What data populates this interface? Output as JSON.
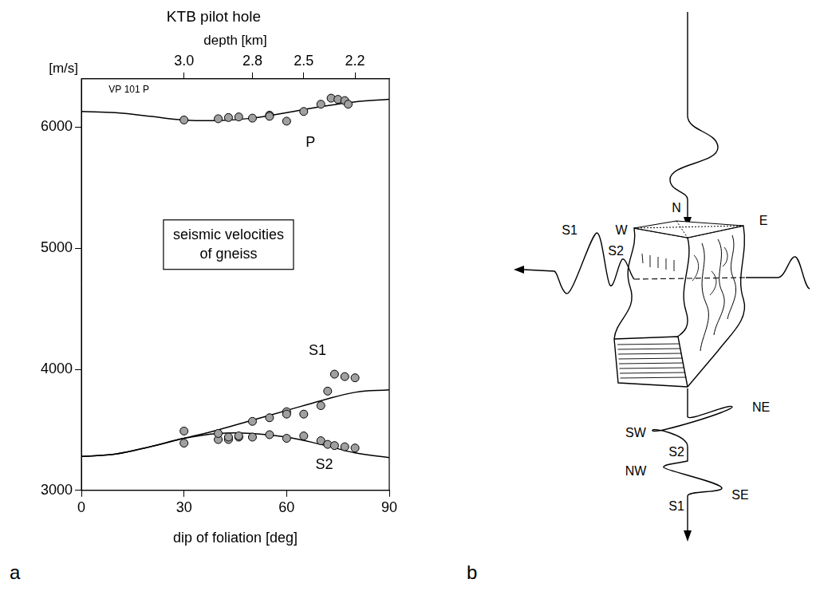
{
  "chart_data": {
    "type": "scatter",
    "panel": "a",
    "title": "KTB pilot hole",
    "xlabel": "dip of foliation [deg]",
    "ylabel": "[m/s]",
    "x2label": "depth [km]",
    "note": {
      "text": "VP 101 P",
      "x": 8,
      "y": 6310
    },
    "box": {
      "lines": [
        "seismic velocities",
        "of gneiss"
      ],
      "x": 43,
      "y": 5030
    },
    "xlim": [
      0,
      90
    ],
    "xticks": [
      0,
      30,
      60,
      90
    ],
    "x2ticks": [
      {
        "value": 30,
        "label": "3.0"
      },
      {
        "value": 50,
        "label": "2.8"
      },
      {
        "value": 65,
        "label": "2.5"
      },
      {
        "value": 80,
        "label": "2.2"
      }
    ],
    "ylim": [
      3000,
      6400
    ],
    "yticks": [
      3000,
      4000,
      5000,
      6000
    ],
    "grid": false,
    "series": [
      {
        "name": "P",
        "type": "line",
        "color": "#000000",
        "line_style": "solid",
        "label": {
          "x": 67,
          "y": 5870
        },
        "x": [
          0,
          10,
          20,
          30,
          40,
          50,
          60,
          70,
          80,
          90
        ],
        "values": [
          6130,
          6120,
          6090,
          6060,
          6055,
          6075,
          6120,
          6170,
          6210,
          6230
        ]
      },
      {
        "name": "S1",
        "type": "line",
        "color": "#000000",
        "line_style": "solid",
        "label": {
          "x": 69,
          "y": 4150
        },
        "x": [
          0,
          10,
          20,
          30,
          40,
          50,
          60,
          70,
          80,
          90
        ],
        "values": [
          3280,
          3300,
          3360,
          3430,
          3500,
          3580,
          3660,
          3740,
          3810,
          3830
        ]
      },
      {
        "name": "S2",
        "type": "line",
        "color": "#000000",
        "line_style": "solid",
        "label": {
          "x": 71,
          "y": 3210
        },
        "x": [
          0,
          10,
          20,
          30,
          40,
          50,
          60,
          70,
          80,
          90
        ],
        "values": [
          3280,
          3300,
          3360,
          3430,
          3470,
          3470,
          3440,
          3380,
          3310,
          3270
        ]
      },
      {
        "name": "P",
        "type": "scatter",
        "color": "#a0a0a0",
        "marker": "circle",
        "x": [
          30,
          40,
          43,
          46,
          50,
          55,
          55,
          60,
          65,
          70,
          73,
          75,
          77,
          78
        ],
        "values": [
          6060,
          6070,
          6080,
          6085,
          6075,
          6100,
          6090,
          6050,
          6130,
          6190,
          6240,
          6230,
          6220,
          6190
        ]
      },
      {
        "name": "S1",
        "type": "scatter",
        "color": "#a0a0a0",
        "marker": "circle",
        "x": [
          30,
          40,
          43,
          46,
          50,
          55,
          60,
          60,
          65,
          70,
          72,
          74,
          77,
          80
        ],
        "values": [
          3490,
          3470,
          3440,
          3450,
          3570,
          3600,
          3650,
          3630,
          3630,
          3700,
          3820,
          3960,
          3940,
          3930
        ]
      },
      {
        "name": "S2",
        "type": "scatter",
        "color": "#a0a0a0",
        "marker": "circle",
        "x": [
          30,
          40,
          43,
          46,
          50,
          55,
          60,
          65,
          70,
          72,
          74,
          77,
          80
        ],
        "values": [
          3390,
          3420,
          3420,
          3440,
          3440,
          3460,
          3430,
          3450,
          3410,
          3380,
          3370,
          3360,
          3350
        ]
      }
    ]
  },
  "diagram": {
    "panel": "b",
    "compass": {
      "north": "N",
      "west": "W",
      "east": "E"
    },
    "horizontal_wave": {
      "fast": "S1",
      "slow": "S2"
    },
    "vertical_wave": {
      "slow": {
        "name": "S2",
        "from": "SW",
        "to": "NE"
      },
      "fast": {
        "name": "S1",
        "from": "NW",
        "to": "SE"
      }
    }
  }
}
